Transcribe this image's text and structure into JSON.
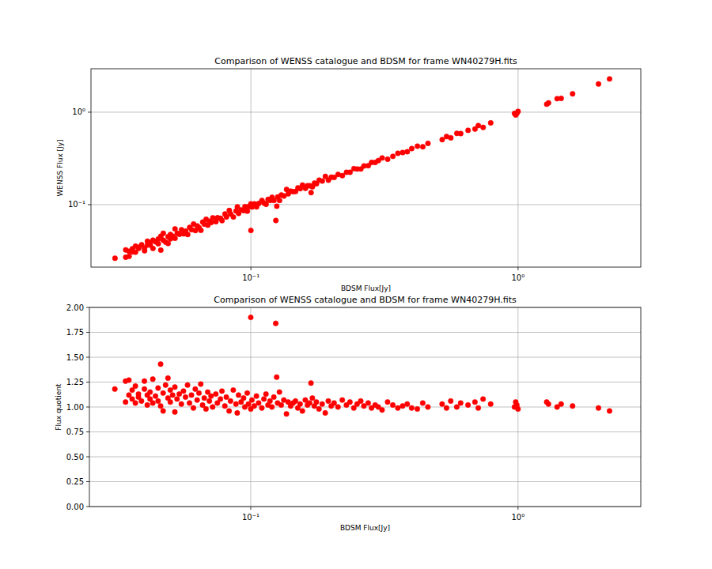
{
  "chart_data": [
    {
      "type": "scatter",
      "title": "Comparison of WENSS catalogue and BDSM for frame WN40279H.fits",
      "x_label": "BDSM Flux[Jy]",
      "y_label": "WENSS Flux [Jy]",
      "log": true,
      "grid": true,
      "color": "#ff0000",
      "marker": "circle",
      "xlim": [
        0.0252,
        2.88
      ],
      "ylim": [
        0.0211,
        2.95
      ],
      "xticks": [
        {
          "value": 0.1,
          "label": "10⁻¹"
        },
        {
          "value": 1,
          "label": "10⁰"
        }
      ],
      "yticks": [
        {
          "value": 0.1,
          "label": "10⁻¹"
        },
        {
          "value": 1,
          "label": "10⁰"
        }
      ],
      "x": [
        0.031,
        0.034,
        0.034,
        0.035,
        0.035,
        0.036,
        0.036,
        0.037,
        0.037,
        0.038,
        0.038,
        0.039,
        0.04,
        0.04,
        0.041,
        0.041,
        0.042,
        0.042,
        0.043,
        0.043,
        0.044,
        0.045,
        0.045,
        0.046,
        0.046,
        0.047,
        0.047,
        0.048,
        0.049,
        0.049,
        0.05,
        0.05,
        0.051,
        0.052,
        0.052,
        0.053,
        0.054,
        0.055,
        0.056,
        0.057,
        0.058,
        0.059,
        0.06,
        0.061,
        0.062,
        0.063,
        0.064,
        0.065,
        0.066,
        0.067,
        0.068,
        0.069,
        0.07,
        0.071,
        0.072,
        0.074,
        0.075,
        0.077,
        0.078,
        0.08,
        0.081,
        0.083,
        0.084,
        0.086,
        0.088,
        0.089,
        0.09,
        0.092,
        0.094,
        0.095,
        0.097,
        0.098,
        0.1,
        0.1,
        0.101,
        0.103,
        0.105,
        0.107,
        0.11,
        0.112,
        0.114,
        0.116,
        0.118,
        0.12,
        0.122,
        0.124,
        0.125,
        0.126,
        0.128,
        0.13,
        0.133,
        0.136,
        0.138,
        0.141,
        0.144,
        0.147,
        0.15,
        0.153,
        0.156,
        0.16,
        0.163,
        0.166,
        0.168,
        0.17,
        0.173,
        0.176,
        0.18,
        0.185,
        0.19,
        0.195,
        0.2,
        0.205,
        0.212,
        0.22,
        0.228,
        0.235,
        0.243,
        0.25,
        0.258,
        0.265,
        0.275,
        0.283,
        0.292,
        0.3,
        0.31,
        0.325,
        0.34,
        0.355,
        0.37,
        0.385,
        0.4,
        0.42,
        0.44,
        0.46,
        0.52,
        0.54,
        0.56,
        0.59,
        0.61,
        0.65,
        0.69,
        0.71,
        0.74,
        0.79,
        0.97,
        0.98,
        0.99,
        1.0,
        1.28,
        1.3,
        1.4,
        1.45,
        1.6,
        2.0,
        2.2
      ],
      "values": [
        0.0263,
        0.027,
        0.0324,
        0.0313,
        0.0276,
        0.0333,
        0.0308,
        0.0306,
        0.0356,
        0.0336,
        0.0345,
        0.0368,
        0.0339,
        0.0317,
        0.0366,
        0.0402,
        0.0389,
        0.0365,
        0.0336,
        0.0413,
        0.0396,
        0.0378,
        0.0425,
        0.0322,
        0.0455,
        0.0412,
        0.049,
        0.0393,
        0.038,
        0.045,
        0.0476,
        0.0427,
        0.0455,
        0.0547,
        0.0433,
        0.0491,
        0.0478,
        0.0534,
        0.0483,
        0.0518,
        0.0475,
        0.0567,
        0.0536,
        0.0616,
        0.0525,
        0.0589,
        0.0561,
        0.0528,
        0.0647,
        0.0615,
        0.0694,
        0.06,
        0.066,
        0.064,
        0.072,
        0.0655,
        0.0721,
        0.0713,
        0.0672,
        0.0792,
        0.0736,
        0.0865,
        0.0792,
        0.0735,
        0.0854,
        0.0947,
        0.0804,
        0.0876,
        0.0862,
        0.095,
        0.0851,
        0.0951,
        0.0526,
        0.102,
        0.0944,
        0.102,
        0.0946,
        0.103,
        0.111,
        0.104,
        0.101,
        0.114,
        0.111,
        0.12,
        0.111,
        0.0674,
        0.0962,
        0.121,
        0.111,
        0.127,
        0.124,
        0.146,
        0.131,
        0.14,
        0.138,
        0.139,
        0.152,
        0.149,
        0.163,
        0.15,
        0.16,
        0.16,
        0.135,
        0.156,
        0.171,
        0.168,
        0.184,
        0.18,
        0.202,
        0.184,
        0.198,
        0.197,
        0.212,
        0.206,
        0.224,
        0.224,
        0.245,
        0.243,
        0.243,
        0.262,
        0.264,
        0.286,
        0.286,
        0.3,
        0.32,
        0.31,
        0.333,
        0.359,
        0.366,
        0.374,
        0.404,
        0.429,
        0.423,
        0.46,
        0.505,
        0.545,
        0.528,
        0.59,
        0.587,
        0.637,
        0.657,
        0.717,
        0.685,
        0.767,
        0.97,
        0.933,
        0.971,
        1.02,
        1.22,
        1.26,
        1.4,
        1.41,
        1.58,
        2.02,
        2.29
      ]
    },
    {
      "type": "scatter",
      "title": "Comparison of WENSS catalogue and BDSM for frame WN40279H.fits",
      "x_label": "BDSM Flux[Jy]",
      "y_label": "Flux quotient",
      "log": "x",
      "grid": true,
      "color": "#ff0000",
      "marker": "circle",
      "xlim": [
        0.0249,
        2.88
      ],
      "ylim": [
        0,
        2
      ],
      "xticks": [
        {
          "value": 0.1,
          "label": "10⁻¹"
        },
        {
          "value": 1,
          "label": "10⁰"
        }
      ],
      "yticks": [
        {
          "value": 0,
          "label": "0.00"
        },
        {
          "value": 0.25,
          "label": "0.25"
        },
        {
          "value": 0.5,
          "label": "0.50"
        },
        {
          "value": 0.75,
          "label": "0.75"
        },
        {
          "value": 1,
          "label": "1.00"
        },
        {
          "value": 1.25,
          "label": "1.25"
        },
        {
          "value": 1.5,
          "label": "1.50"
        },
        {
          "value": 1.75,
          "label": "1.75"
        },
        {
          "value": 2,
          "label": "2.00"
        }
      ],
      "x": [
        0.031,
        0.034,
        0.034,
        0.035,
        0.035,
        0.036,
        0.036,
        0.037,
        0.037,
        0.038,
        0.038,
        0.039,
        0.04,
        0.04,
        0.041,
        0.041,
        0.042,
        0.042,
        0.043,
        0.043,
        0.044,
        0.045,
        0.045,
        0.046,
        0.046,
        0.047,
        0.047,
        0.048,
        0.049,
        0.049,
        0.05,
        0.05,
        0.051,
        0.052,
        0.052,
        0.053,
        0.054,
        0.055,
        0.056,
        0.057,
        0.058,
        0.059,
        0.06,
        0.061,
        0.062,
        0.063,
        0.064,
        0.065,
        0.066,
        0.067,
        0.068,
        0.069,
        0.07,
        0.071,
        0.072,
        0.074,
        0.075,
        0.077,
        0.078,
        0.08,
        0.081,
        0.083,
        0.084,
        0.086,
        0.088,
        0.089,
        0.09,
        0.092,
        0.094,
        0.095,
        0.097,
        0.098,
        0.1,
        0.1,
        0.101,
        0.103,
        0.105,
        0.107,
        0.11,
        0.112,
        0.114,
        0.116,
        0.118,
        0.12,
        0.122,
        0.124,
        0.125,
        0.126,
        0.128,
        0.13,
        0.133,
        0.136,
        0.138,
        0.141,
        0.144,
        0.147,
        0.15,
        0.153,
        0.156,
        0.16,
        0.163,
        0.166,
        0.168,
        0.17,
        0.173,
        0.176,
        0.18,
        0.185,
        0.19,
        0.195,
        0.2,
        0.205,
        0.212,
        0.22,
        0.228,
        0.235,
        0.243,
        0.25,
        0.258,
        0.265,
        0.275,
        0.283,
        0.292,
        0.3,
        0.31,
        0.325,
        0.34,
        0.355,
        0.37,
        0.385,
        0.4,
        0.42,
        0.44,
        0.46,
        0.52,
        0.54,
        0.56,
        0.59,
        0.61,
        0.65,
        0.69,
        0.71,
        0.74,
        0.79,
        0.97,
        0.98,
        0.99,
        1.0,
        1.28,
        1.3,
        1.4,
        1.45,
        1.6,
        2.0,
        2.2
      ],
      "values": [
        1.18,
        1.26,
        1.05,
        1.12,
        1.27,
        1.08,
        1.17,
        1.21,
        1.04,
        1.13,
        1.1,
        1.06,
        1.18,
        1.26,
        1.12,
        1.02,
        1.08,
        1.15,
        1.28,
        1.04,
        1.11,
        1.19,
        1.06,
        1.43,
        1.01,
        1.14,
        0.96,
        1.22,
        1.29,
        1.09,
        1.05,
        1.17,
        1.12,
        0.95,
        1.2,
        1.08,
        1.13,
        1.03,
        1.16,
        1.1,
        1.22,
        1.04,
        1.12,
        0.99,
        1.18,
        1.07,
        1.14,
        1.23,
        1.02,
        1.09,
        0.98,
        1.15,
        1.06,
        1.11,
        1.0,
        1.13,
        1.04,
        1.08,
        1.16,
        1.01,
        1.1,
        0.96,
        1.06,
        1.17,
        1.03,
        0.94,
        1.12,
        1.05,
        1.09,
        1.0,
        1.14,
        1.03,
        1.9,
        0.98,
        1.07,
        1.01,
        1.11,
        1.04,
        0.99,
        1.08,
        1.13,
        1.02,
        1.06,
        1.0,
        1.1,
        1.84,
        1.3,
        1.04,
        1.15,
        1.02,
        1.07,
        0.93,
        1.05,
        1.01,
        1.04,
        1.06,
        0.99,
        1.03,
        0.96,
        1.07,
        1.02,
        1.04,
        1.24,
        1.09,
        1.01,
        1.05,
        0.98,
        1.03,
        0.94,
        1.06,
        1.01,
        1.04,
        1.0,
        1.07,
        1.02,
        1.05,
        0.99,
        1.03,
        1.06,
        1.01,
        1.04,
        0.99,
        1.02,
        1.0,
        0.97,
        1.05,
        1.02,
        0.99,
        1.01,
        1.03,
        0.99,
        0.98,
        1.04,
        1.0,
        1.03,
        0.99,
        1.06,
        1.0,
        1.04,
        1.02,
        1.05,
        0.99,
        1.08,
        1.03,
        1.0,
        1.05,
        1.02,
        0.98,
        1.05,
        1.03,
        1.0,
        1.03,
        1.01,
        0.99,
        0.96
      ]
    }
  ]
}
